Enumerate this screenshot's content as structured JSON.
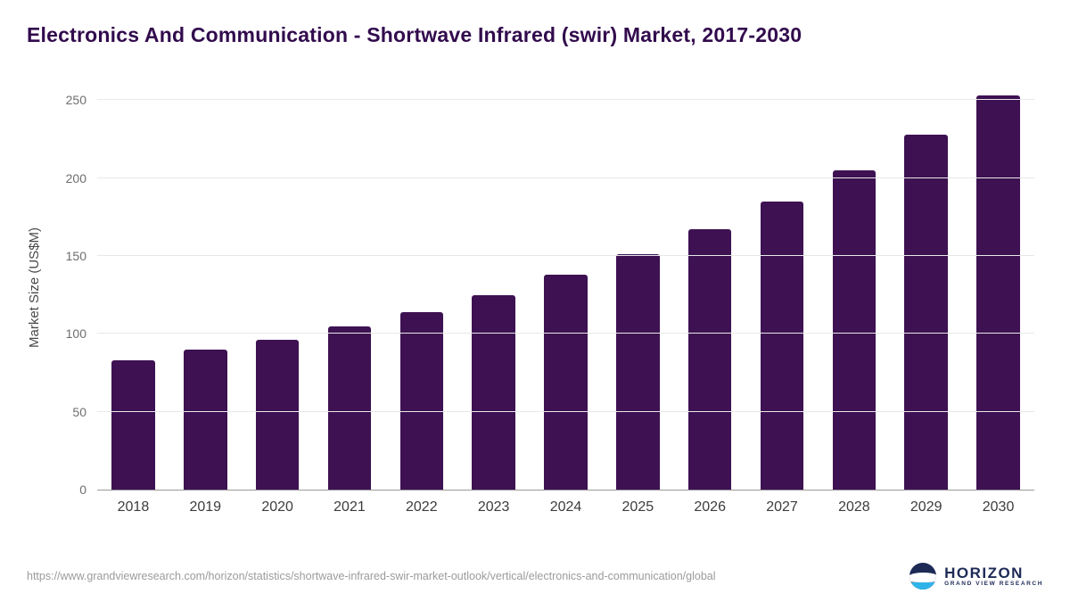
{
  "title": "Electronics And Communication - Shortwave Infrared (swir) Market, 2017-2030",
  "chart_data": {
    "type": "bar",
    "categories": [
      "2018",
      "2019",
      "2020",
      "2021",
      "2022",
      "2023",
      "2024",
      "2025",
      "2026",
      "2027",
      "2028",
      "2029",
      "2030"
    ],
    "values": [
      83,
      90,
      96,
      105,
      114,
      125,
      138,
      151,
      167,
      185,
      205,
      228,
      253
    ],
    "title": "Electronics And Communication - Shortwave Infrared (swir) Market, 2017-2030",
    "xlabel": "",
    "ylabel": "Market Size (US$M)",
    "ylim": [
      0,
      260
    ],
    "yticks": [
      0,
      50,
      100,
      150,
      200,
      250
    ],
    "bar_color": "#3d1152",
    "grid": true,
    "legend": false
  },
  "footer": {
    "source_url": "https://www.grandviewresearch.com/horizon/statistics/shortwave-infrared-swir-market-outlook/vertical/electronics-and-communication/global",
    "logo": {
      "name": "HORIZON",
      "subtitle": "GRAND VIEW RESEARCH"
    }
  },
  "colors": {
    "accent": "#3d1152",
    "title_text": "#320b4d",
    "logo_navy": "#1d2a56",
    "logo_blue": "#2fb4e9",
    "gridline": "#e8e8e8"
  }
}
